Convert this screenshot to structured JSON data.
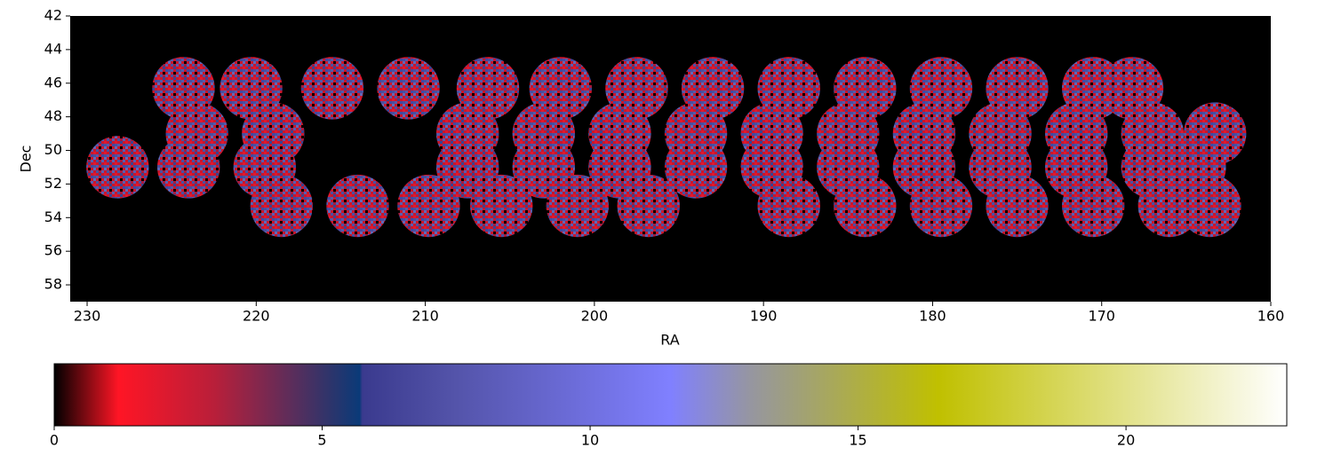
{
  "chart_data": {
    "type": "skymap",
    "xlabel": "RA",
    "ylabel": "Dec",
    "xlim": [
      231,
      160
    ],
    "ylim": [
      42,
      59
    ],
    "xticks": [
      230,
      220,
      210,
      200,
      190,
      180,
      170,
      160
    ],
    "yticks": [
      42,
      44,
      46,
      48,
      50,
      52,
      54,
      56,
      58
    ],
    "background": "#000000",
    "field_radius": 1.85,
    "fields": {
      "ra": [
        224.3,
        220.3,
        215.5,
        211.0,
        206.3,
        202.0,
        197.5,
        193.0,
        188.5,
        184.0,
        179.5,
        175.0,
        170.5,
        168.2,
        223.5,
        219.0,
        207.5,
        203.0,
        198.5,
        194.0,
        189.5,
        185.0,
        180.5,
        176.0,
        171.5,
        167.0,
        163.3,
        228.2,
        224.0,
        219.5,
        207.5,
        203.0,
        198.5,
        194.0,
        189.5,
        185.0,
        180.5,
        176.0,
        171.5,
        167.0,
        164.5,
        218.5,
        214.0,
        209.8,
        205.5,
        201.0,
        196.8,
        188.5,
        184.0,
        179.5,
        175.0,
        170.5,
        166.0,
        163.6
      ],
      "dec": [
        46.3,
        46.3,
        46.3,
        46.3,
        46.3,
        46.3,
        46.3,
        46.3,
        46.3,
        46.3,
        46.3,
        46.3,
        46.3,
        46.3,
        49.0,
        49.0,
        49.0,
        49.0,
        49.0,
        49.0,
        49.0,
        49.0,
        49.0,
        49.0,
        49.0,
        49.0,
        49.0,
        51.0,
        51.0,
        51.0,
        51.0,
        51.0,
        51.0,
        51.0,
        51.0,
        51.0,
        51.0,
        51.0,
        51.0,
        51.0,
        51.0,
        53.3,
        53.3,
        53.3,
        53.3,
        53.3,
        53.3,
        53.3,
        53.3,
        53.3,
        53.3,
        53.3,
        53.3,
        53.3
      ]
    },
    "colorbar": {
      "clim": [
        0,
        23
      ],
      "ticks": [
        0,
        5,
        10,
        15,
        20
      ],
      "colormap": [
        {
          "value": 0,
          "color": "#000000"
        },
        {
          "value": 1.2,
          "color": "#ff1525"
        },
        {
          "value": 3,
          "color": "#b81f3a"
        },
        {
          "value": 5.7,
          "color": "#0a3a78"
        },
        {
          "value": 5.75,
          "color": "#3a3a8e"
        },
        {
          "value": 7.5,
          "color": "#5454aa"
        },
        {
          "value": 11.5,
          "color": "#8080ff"
        },
        {
          "value": 13,
          "color": "#9696a0"
        },
        {
          "value": 16.5,
          "color": "#c0c000"
        },
        {
          "value": 23,
          "color": "#ffffff"
        }
      ]
    }
  }
}
